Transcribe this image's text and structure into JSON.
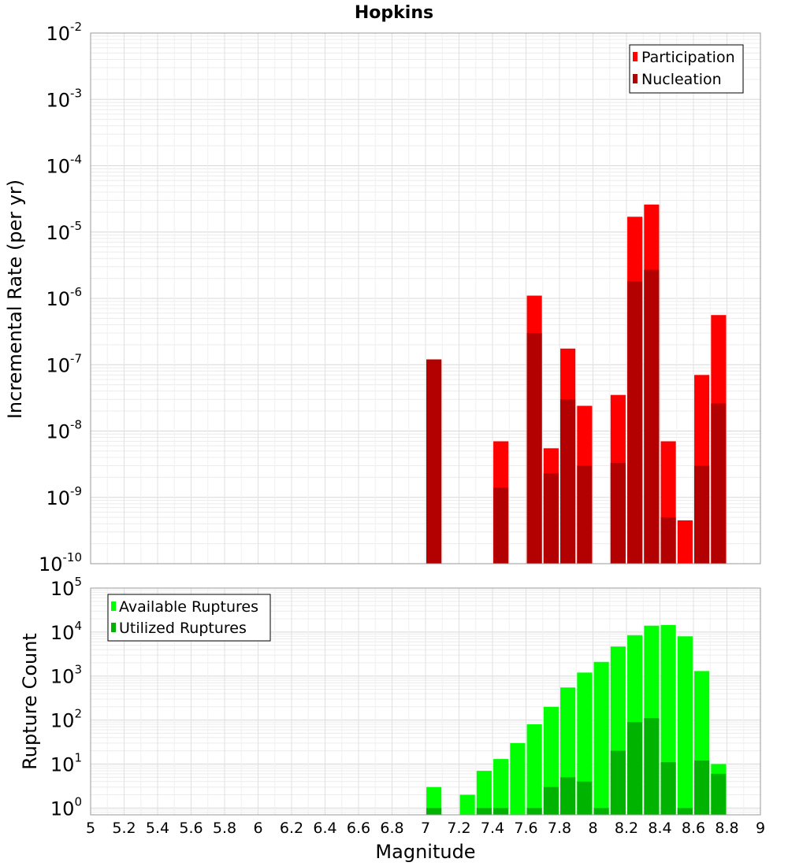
{
  "title": "Hopkins",
  "xlabel": "Magnitude",
  "x_ticks": [
    "5",
    "5.2",
    "5.4",
    "5.6",
    "5.8",
    "6",
    "6.2",
    "6.4",
    "6.6",
    "6.8",
    "7",
    "7.2",
    "7.4",
    "7.6",
    "7.8",
    "8",
    "8.2",
    "8.4",
    "8.6",
    "8.8",
    "9"
  ],
  "colors": {
    "participation": "#ff0000",
    "nucleation": "#b30000",
    "available": "#00ff00",
    "utilized": "#00b300"
  },
  "chart_data": [
    {
      "type": "bar",
      "title": "Hopkins",
      "xlabel": "Magnitude",
      "ylabel": "Incremental Rate (per yr)",
      "yscale": "log",
      "xlim": [
        5,
        9
      ],
      "ylim": [
        1e-10,
        0.01
      ],
      "y_ticks": [
        {
          "base": "10",
          "exp": "-10"
        },
        {
          "base": "10",
          "exp": "-9"
        },
        {
          "base": "10",
          "exp": "-8"
        },
        {
          "base": "10",
          "exp": "-7"
        },
        {
          "base": "10",
          "exp": "-6"
        },
        {
          "base": "10",
          "exp": "-5"
        },
        {
          "base": "10",
          "exp": "-4"
        },
        {
          "base": "10",
          "exp": "-3"
        },
        {
          "base": "10",
          "exp": "-2"
        }
      ],
      "legend_position": "top-right",
      "grid": true,
      "overlay": true,
      "x": [
        7.05,
        7.45,
        7.65,
        7.75,
        7.85,
        7.95,
        8.15,
        8.25,
        8.35,
        8.45,
        8.55,
        8.65,
        8.75
      ],
      "series": [
        {
          "name": "Participation",
          "values": [
            1.2e-07,
            7e-09,
            1.1e-06,
            5.5e-09,
            1.75e-07,
            2.4e-08,
            3.5e-08,
            1.7e-05,
            2.6e-05,
            7e-09,
            4.5e-10,
            7e-08,
            5.6e-07
          ]
        },
        {
          "name": "Nucleation",
          "values": [
            1.2e-07,
            1.4e-09,
            3e-07,
            2.3e-09,
            3e-08,
            3e-09,
            3.3e-09,
            1.8e-06,
            2.7e-06,
            5e-10,
            null,
            3e-09,
            2.6e-08
          ]
        }
      ]
    },
    {
      "type": "bar",
      "xlabel": "Magnitude",
      "ylabel": "Rupture Count",
      "yscale": "log",
      "xlim": [
        5,
        9
      ],
      "ylim": [
        0.7,
        100000
      ],
      "y_ticks": [
        {
          "base": "10",
          "exp": "0"
        },
        {
          "base": "10",
          "exp": "1"
        },
        {
          "base": "10",
          "exp": "2"
        },
        {
          "base": "10",
          "exp": "3"
        },
        {
          "base": "10",
          "exp": "4"
        },
        {
          "base": "10",
          "exp": "5"
        }
      ],
      "legend_position": "top-left",
      "grid": true,
      "overlay": true,
      "x": [
        7.05,
        7.25,
        7.35,
        7.45,
        7.55,
        7.65,
        7.75,
        7.85,
        7.95,
        8.05,
        8.15,
        8.25,
        8.35,
        8.45,
        8.55,
        8.65,
        8.75
      ],
      "series": [
        {
          "name": "Available Ruptures",
          "values": [
            3,
            2,
            7,
            13,
            30,
            80,
            200,
            550,
            1200,
            2100,
            4700,
            8500,
            14000,
            14500,
            8000,
            1300,
            10
          ]
        },
        {
          "name": "Utilized Ruptures",
          "values": [
            1,
            null,
            1,
            1,
            null,
            1,
            3,
            5,
            4,
            1,
            20,
            90,
            110,
            11,
            1,
            12,
            6
          ]
        }
      ]
    }
  ]
}
